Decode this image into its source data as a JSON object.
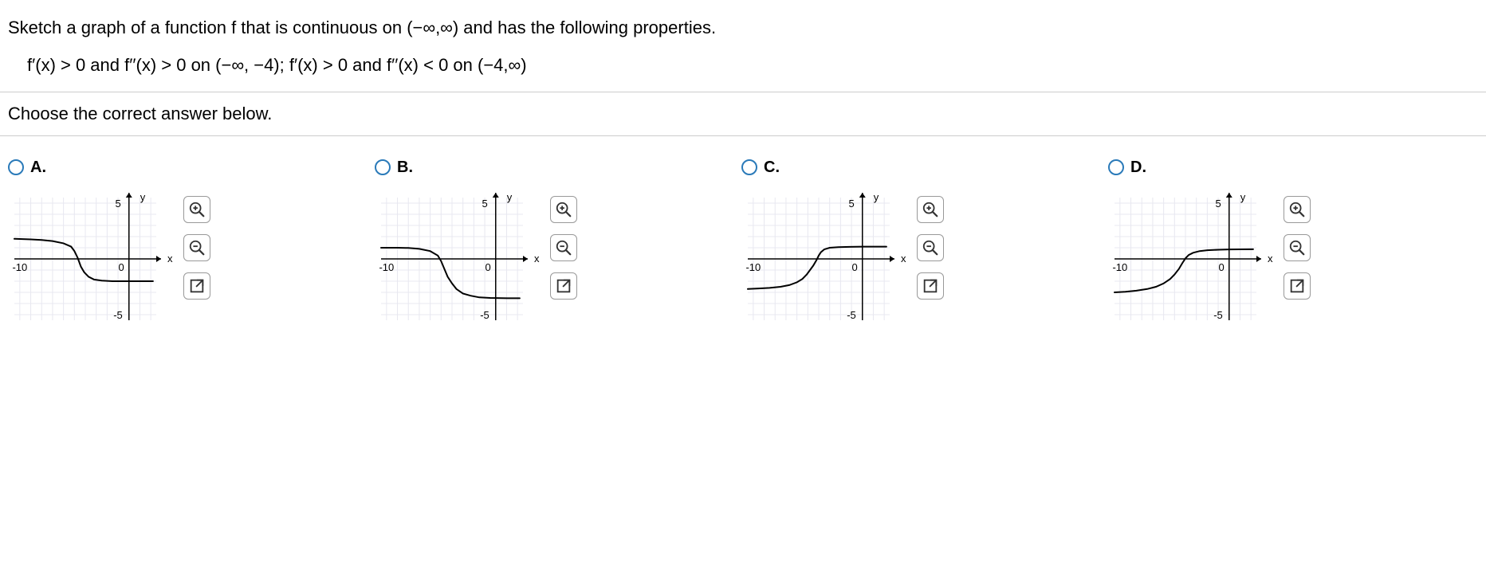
{
  "question": {
    "text": "Sketch a graph of a function f that is continuous on (−∞,∞) and has the following properties.",
    "conditions": "f′(x) > 0 and f′′(x) > 0 on (−∞, −4); f′(x) > 0 and f′′(x) < 0 on (−4,∞)",
    "instruction": "Choose the correct answer below."
  },
  "options": [
    {
      "id": "A",
      "label": "A.",
      "chart": {
        "type": "curve",
        "xlim": [
          -10.5,
          2.5
        ],
        "ylim": [
          -5.5,
          5.5
        ],
        "xtick": -10,
        "ytick_top": 5,
        "ytick_bot": -5,
        "axis_y_at_x": 0,
        "axis_x_at_y": 0,
        "title_y": "y",
        "title_x": "x",
        "grid_color": "#e8e8f0",
        "axis_color": "#000000",
        "curve_color": "#000000",
        "curve_width": 2,
        "points": [
          [
            -10.5,
            1.8
          ],
          [
            -9,
            1.75
          ],
          [
            -8,
            1.7
          ],
          [
            -7,
            1.6
          ],
          [
            -6,
            1.4
          ],
          [
            -5.3,
            1.1
          ],
          [
            -5,
            0.7
          ],
          [
            -4.7,
            0.1
          ],
          [
            -4.4,
            -0.7
          ],
          [
            -4.1,
            -1.2
          ],
          [
            -3.7,
            -1.6
          ],
          [
            -3.2,
            -1.85
          ],
          [
            -2.5,
            -1.95
          ],
          [
            -1.5,
            -2.0
          ],
          [
            -0.5,
            -2.0
          ],
          [
            0.5,
            -2.0
          ],
          [
            1.5,
            -2.0
          ],
          [
            2.2,
            -2.0
          ]
        ]
      }
    },
    {
      "id": "B",
      "label": "B.",
      "chart": {
        "type": "curve",
        "xlim": [
          -10.5,
          2.5
        ],
        "ylim": [
          -5.5,
          5.5
        ],
        "xtick": -10,
        "ytick_top": 5,
        "ytick_bot": -5,
        "axis_y_at_x": 0,
        "axis_x_at_y": 0,
        "title_y": "y",
        "title_x": "x",
        "grid_color": "#e8e8f0",
        "axis_color": "#000000",
        "curve_color": "#000000",
        "curve_width": 2,
        "points": [
          [
            -10.5,
            1.0
          ],
          [
            -9,
            1.0
          ],
          [
            -8,
            0.98
          ],
          [
            -7,
            0.9
          ],
          [
            -6,
            0.7
          ],
          [
            -5.3,
            0.3
          ],
          [
            -5,
            -0.2
          ],
          [
            -4.7,
            -0.9
          ],
          [
            -4.4,
            -1.6
          ],
          [
            -4.0,
            -2.2
          ],
          [
            -3.6,
            -2.7
          ],
          [
            -3.0,
            -3.1
          ],
          [
            -2.3,
            -3.3
          ],
          [
            -1.5,
            -3.45
          ],
          [
            -0.5,
            -3.5
          ],
          [
            0.5,
            -3.52
          ],
          [
            1.5,
            -3.53
          ],
          [
            2.2,
            -3.53
          ]
        ]
      }
    },
    {
      "id": "C",
      "label": "C.",
      "chart": {
        "type": "curve",
        "xlim": [
          -10.5,
          2.5
        ],
        "ylim": [
          -5.5,
          5.5
        ],
        "xtick": -10,
        "ytick_top": 5,
        "ytick_bot": -5,
        "axis_y_at_x": 0,
        "axis_x_at_y": 0,
        "title_y": "y",
        "title_x": "x",
        "grid_color": "#e8e8f0",
        "axis_color": "#000000",
        "curve_color": "#000000",
        "curve_width": 2,
        "points": [
          [
            -10.5,
            -2.7
          ],
          [
            -9.5,
            -2.65
          ],
          [
            -8.5,
            -2.6
          ],
          [
            -7.5,
            -2.5
          ],
          [
            -6.7,
            -2.35
          ],
          [
            -6,
            -2.1
          ],
          [
            -5.5,
            -1.8
          ],
          [
            -5.1,
            -1.4
          ],
          [
            -4.8,
            -1.0
          ],
          [
            -4.5,
            -0.6
          ],
          [
            -4.2,
            -0.1
          ],
          [
            -4.0,
            0.3
          ],
          [
            -3.8,
            0.6
          ],
          [
            -3.5,
            0.85
          ],
          [
            -3.0,
            1.0
          ],
          [
            -2.2,
            1.05
          ],
          [
            -1.2,
            1.08
          ],
          [
            0,
            1.1
          ],
          [
            1,
            1.1
          ],
          [
            2.2,
            1.1
          ]
        ]
      }
    },
    {
      "id": "D",
      "label": "D.",
      "chart": {
        "type": "curve",
        "xlim": [
          -10.5,
          2.5
        ],
        "ylim": [
          -5.5,
          5.5
        ],
        "xtick": -10,
        "ytick_top": 5,
        "ytick_bot": -5,
        "axis_y_at_x": 0,
        "axis_x_at_y": 0,
        "title_y": "y",
        "title_x": "x",
        "grid_color": "#e8e8f0",
        "axis_color": "#000000",
        "curve_color": "#000000",
        "curve_width": 2,
        "points": [
          [
            -10.5,
            -3.0
          ],
          [
            -9.5,
            -2.95
          ],
          [
            -8.5,
            -2.85
          ],
          [
            -7.5,
            -2.7
          ],
          [
            -6.7,
            -2.5
          ],
          [
            -6,
            -2.2
          ],
          [
            -5.4,
            -1.8
          ],
          [
            -5,
            -1.4
          ],
          [
            -4.6,
            -0.9
          ],
          [
            -4.3,
            -0.4
          ],
          [
            -4.0,
            0.05
          ],
          [
            -3.7,
            0.35
          ],
          [
            -3.3,
            0.55
          ],
          [
            -2.7,
            0.7
          ],
          [
            -2,
            0.78
          ],
          [
            -1,
            0.82
          ],
          [
            0,
            0.85
          ],
          [
            1,
            0.86
          ],
          [
            2.2,
            0.87
          ]
        ]
      }
    }
  ]
}
